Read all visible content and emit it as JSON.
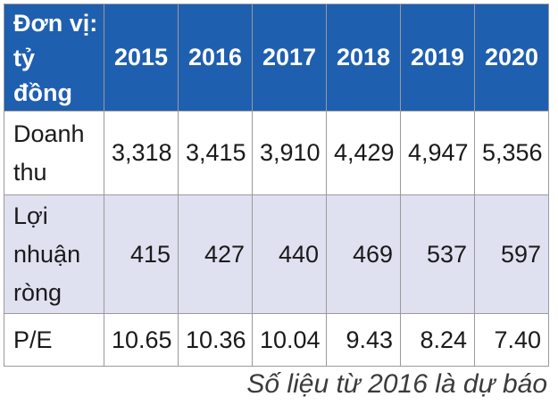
{
  "table": {
    "unit_header_line1": "Đơn vị:",
    "unit_header_line2": "tỷ đồng",
    "years": [
      "2015",
      "2016",
      "2017",
      "2018",
      "2019",
      "2020"
    ],
    "rows": [
      {
        "label_lines": [
          "Doanh",
          "thu"
        ],
        "values": [
          "3,318",
          "3,415",
          "3,910",
          "4,429",
          "4,947",
          "5,356"
        ]
      },
      {
        "label_lines": [
          "Lợi",
          "nhuận",
          "ròng"
        ],
        "values": [
          "415",
          "427",
          "440",
          "469",
          "537",
          "597"
        ]
      },
      {
        "label_lines": [
          "P/E"
        ],
        "values": [
          "10.65",
          "10.36",
          "10.04",
          "9.43",
          "8.24",
          "7.40"
        ]
      }
    ],
    "header_color": "#1f5fb0",
    "alt_row_color": "#dfe1f1"
  },
  "footnote": "Số liệu từ 2016 là dự báo"
}
